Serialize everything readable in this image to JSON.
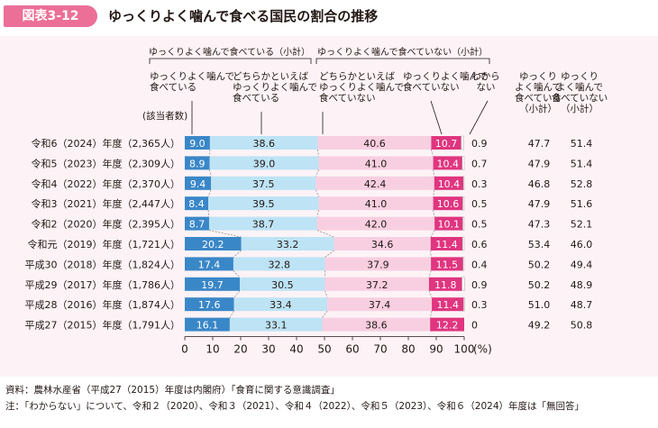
{
  "figure_label": "図表3-12",
  "figure_title": "ゆっくりよく噛んで食べる国民の割合の推移",
  "colors": {
    "accent": "#ec6f97",
    "panel_bg": "#fdf3f6",
    "s1": "#3a87c8",
    "s2": "#bde3f5",
    "s3": "#f8cfe0",
    "s4": "#e0357f"
  },
  "group_labels": {
    "yes_subtotal": "ゆっくりよく噛んで食べている（小計）",
    "no_subtotal": "ゆっくりよく噛んで食べていない（小計）"
  },
  "column_headers": {
    "s1": [
      "ゆっくりよく噛んで",
      "食べている"
    ],
    "s2": [
      "どちらかといえば",
      "ゆっくりよく噛んで",
      "食べている"
    ],
    "s3": [
      "どちらかといえば",
      "ゆっくりよく噛んで",
      "食べていない"
    ],
    "s4": [
      "ゆっくりよく噛んで",
      "食べていない"
    ],
    "s5": [
      "わから",
      "ない"
    ],
    "yes_total": [
      "ゆっくり",
      "よく噛んで",
      "食べている",
      "（小計）"
    ],
    "no_total": [
      "ゆっくり",
      "よく噛んで",
      "食べていない",
      "（小計）"
    ]
  },
  "respondents_label": "(該当者数)",
  "axis_unit": "(%)",
  "chart_data": {
    "type": "bar",
    "orientation": "horizontal-stacked-100",
    "categories": [
      "令和6（2024）年度（2,365人）",
      "令和5（2023）年度（2,309人）",
      "令和4（2022）年度（2,370人）",
      "令和3（2021）年度（2,447人）",
      "令和2（2020）年度（2,395人）",
      "令和元（2019）年度（1,721人）",
      "平成30（2018）年度（1,824人）",
      "平成29（2017）年度（1,786人）",
      "平成28（2016）年度（1,874人）",
      "平成27（2015）年度（1,791人）"
    ],
    "series": [
      {
        "name": "ゆっくりよく噛んで食べている",
        "values": [
          9.0,
          8.9,
          9.4,
          8.4,
          8.7,
          20.2,
          17.4,
          19.7,
          17.6,
          16.1
        ]
      },
      {
        "name": "どちらかといえばゆっくりよく噛んで食べている",
        "values": [
          38.6,
          39.0,
          37.5,
          39.5,
          38.7,
          33.2,
          32.8,
          30.5,
          33.4,
          33.1
        ]
      },
      {
        "name": "どちらかといえばゆっくりよく噛んで食べていない",
        "values": [
          40.6,
          41.0,
          42.4,
          41.0,
          42.0,
          34.6,
          37.9,
          37.2,
          37.4,
          38.6
        ]
      },
      {
        "name": "ゆっくりよく噛んで食べていない",
        "values": [
          10.7,
          10.4,
          10.4,
          10.6,
          10.1,
          11.4,
          11.5,
          11.8,
          11.4,
          12.2
        ]
      },
      {
        "name": "わからない",
        "values": [
          0.9,
          0.7,
          0.3,
          0.5,
          0.5,
          0.6,
          0.4,
          0.9,
          0.3,
          0
        ]
      }
    ],
    "value_labels": [
      [
        "9.0",
        "8.9",
        "9.4",
        "8.4",
        "8.7",
        "20.2",
        "17.4",
        "19.7",
        "17.6",
        "16.1"
      ],
      [
        "38.6",
        "39.0",
        "37.5",
        "39.5",
        "38.7",
        "33.2",
        "32.8",
        "30.5",
        "33.4",
        "33.1"
      ],
      [
        "40.6",
        "41.0",
        "42.4",
        "41.0",
        "42.0",
        "34.6",
        "37.9",
        "37.2",
        "37.4",
        "38.6"
      ],
      [
        "10.7",
        "10.4",
        "10.4",
        "10.6",
        "10.1",
        "11.4",
        "11.5",
        "11.8",
        "11.4",
        "12.2"
      ],
      [
        "0.9",
        "0.7",
        "0.3",
        "0.5",
        "0.5",
        "0.6",
        "0.4",
        "0.9",
        "0.3",
        "0"
      ]
    ],
    "subtotal_yes": [
      "47.7",
      "47.9",
      "46.8",
      "47.9",
      "47.3",
      "53.4",
      "50.2",
      "50.2",
      "51.0",
      "49.2"
    ],
    "subtotal_no": [
      "51.4",
      "51.4",
      "52.8",
      "51.6",
      "52.1",
      "46.0",
      "49.4",
      "48.9",
      "48.7",
      "50.8"
    ],
    "xlim": [
      0,
      100
    ],
    "xticks": [
      "0",
      "10",
      "20",
      "30",
      "40",
      "50",
      "60",
      "70",
      "80",
      "90",
      "100"
    ],
    "grid": false,
    "legend": "top"
  },
  "notes": [
    "資料：農林水産省（平成27（2015）年度は内閣府）「食育に関する意識調査」",
    "注：「わからない」について、令和２（2020）、令和３（2021）、令和４（2022）、令和５（2023）、令和６（2024）年度は「無回答」"
  ]
}
